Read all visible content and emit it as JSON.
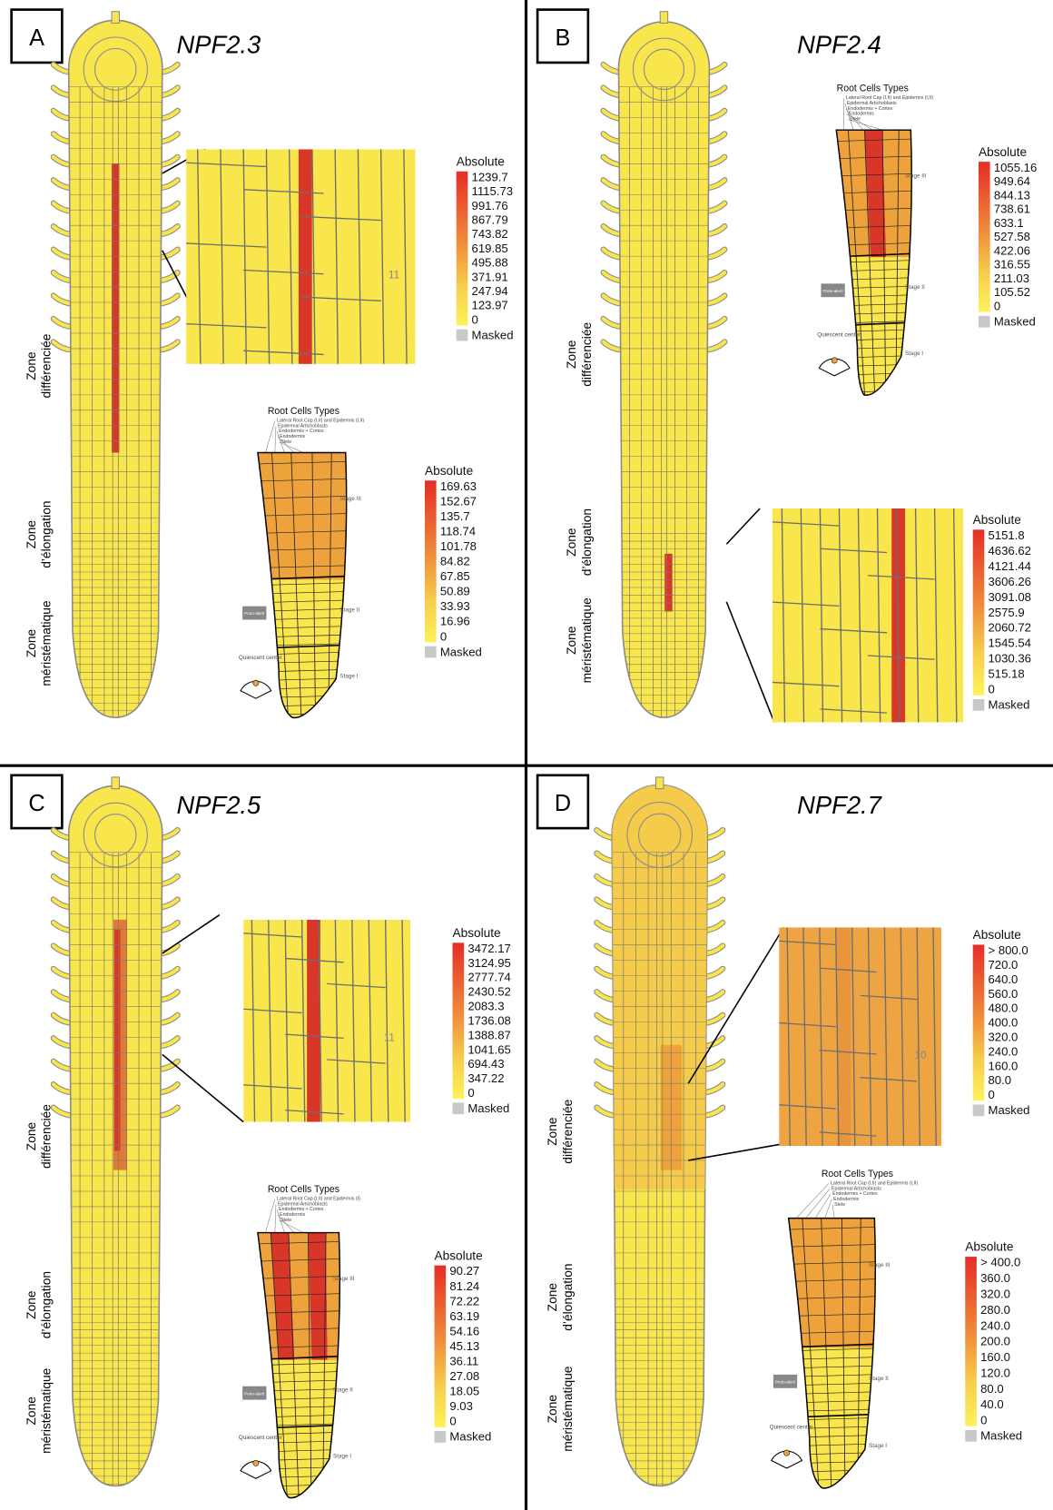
{
  "panels": [
    {
      "letter": "A",
      "gene": "NPF2.3",
      "zones": [
        [
          "Zone",
          "différenciée"
        ],
        [
          "Zone",
          "d’élongation"
        ],
        [
          "Zone",
          "méristématique"
        ]
      ],
      "zoom": {
        "label": "11",
        "legend": {
          "title": "Absolute",
          "labels": [
            "1239.7",
            "1115.73",
            "991.76",
            "867.79",
            "743.82",
            "619.85",
            "495.88",
            "371.91",
            "247.94",
            "123.97",
            "0"
          ],
          "masked": "Masked"
        }
      },
      "cell_types": {
        "title": "Root Cells Types",
        "types": [
          "Lateral Root Cap (I,II) and Epidermis (I,II)",
          "Epidermal Artichoblasts",
          "Endodermis + Cortex",
          "Endodermis",
          "Stele"
        ],
        "stages": [
          "Stage III",
          "Stage II",
          "Stage I"
        ],
        "proto": "Proto-alert!",
        "qc": "Quiescent center",
        "legend": {
          "title": "Absolute",
          "labels": [
            "169.63",
            "152.67",
            "135.7",
            "118.74",
            "101.78",
            "84.82",
            "67.85",
            "50.89",
            "33.93",
            "16.96",
            "0"
          ],
          "masked": "Masked"
        }
      }
    },
    {
      "letter": "B",
      "gene": "NPF2.4",
      "zones": [
        [
          "Zone",
          "différenciée"
        ],
        [
          "Zone",
          "d’élongation"
        ],
        [
          "Zone",
          "méristématique"
        ]
      ],
      "zoom": {
        "legend": {
          "title": "Absolute",
          "labels": [
            "5151.8",
            "4636.62",
            "4121.44",
            "3606.26",
            "3091.08",
            "2575.9",
            "2060.72",
            "1545.54",
            "1030.36",
            "515.18",
            "0"
          ],
          "masked": "Masked"
        }
      },
      "cell_types": {
        "title": "Root Cells Types",
        "types": [
          "Lateral Root Cap (I,II) and Epidermis (I,II)",
          "Epidermal Artichoblasts",
          "Endodermis + Cortex",
          "Endodermis",
          "Stele"
        ],
        "stages": [
          "Stage III",
          "Stage II",
          "Stage I"
        ],
        "proto": "Proto-alert!",
        "qc": "Quiescent center",
        "legend": {
          "title": "Absolute",
          "labels": [
            "1055.16",
            "949.64",
            "844.13",
            "738.61",
            "633.1",
            "527.58",
            "422.06",
            "316.55",
            "211.03",
            "105.52",
            "0"
          ],
          "masked": "Masked"
        }
      }
    },
    {
      "letter": "C",
      "gene": "NPF2.5",
      "zones": [
        [
          "Zone",
          "différenciée"
        ],
        [
          "Zone",
          "d’élongation"
        ],
        [
          "Zone",
          "méristématique"
        ]
      ],
      "zoom": {
        "label": "11",
        "legend": {
          "title": "Absolute",
          "labels": [
            "3472.17",
            "3124.95",
            "2777.74",
            "2430.52",
            "2083.3",
            "1736.08",
            "1388.87",
            "1041.65",
            "694.43",
            "347.22",
            "0"
          ],
          "masked": "Masked"
        }
      },
      "cell_types": {
        "title": "Root Cells Types",
        "types": [
          "Lateral Root Cap (I,II) and Epidermis (I)",
          "Epidermal Artichoblasts",
          "Endodermis + Cortex",
          "Endodermis",
          "Stele"
        ],
        "stages": [
          "Stage III",
          "Stage II",
          "Stage I"
        ],
        "proto": "Proto-alert!",
        "qc": "Quiescent center",
        "legend": {
          "title": "Absolute",
          "labels": [
            "90.27",
            "81.24",
            "72.22",
            "63.19",
            "54.16",
            "45.13",
            "36.11",
            "27.08",
            "18.05",
            "9.03",
            "0"
          ],
          "masked": "Masked"
        }
      }
    },
    {
      "letter": "D",
      "gene": "NPF2.7",
      "zones": [
        [
          "Zone",
          "différenciée"
        ],
        [
          "Zone",
          "d’élongation"
        ],
        [
          "Zone",
          "méristématique"
        ]
      ],
      "zoom": {
        "label": "10",
        "legend": {
          "title": "Absolute",
          "labels": [
            "> 800.0",
            "720.0",
            "640.0",
            "560.0",
            "480.0",
            "400.0",
            "320.0",
            "240.0",
            "160.0",
            "80.0",
            "0"
          ],
          "masked": "Masked"
        }
      },
      "cell_types": {
        "title": "Root Cells Types",
        "types": [
          "Lateral Root Cap (I,II) and Epidermis (I,II)",
          "Epidermal Artichoblasts",
          "Endodermis + Cortex",
          "Endodermis",
          "Stele"
        ],
        "stages": [
          "Stage III",
          "Stage II",
          "Stage I"
        ],
        "proto": "Proto-alert!",
        "qc": "Quiescent center",
        "legend": {
          "title": "Absolute",
          "labels": [
            "> 400.0",
            "360.0",
            "320.0",
            "280.0",
            "240.0",
            "200.0",
            "160.0",
            "120.0",
            "80.0",
            "40.0",
            "0"
          ],
          "masked": "Masked"
        }
      }
    }
  ]
}
